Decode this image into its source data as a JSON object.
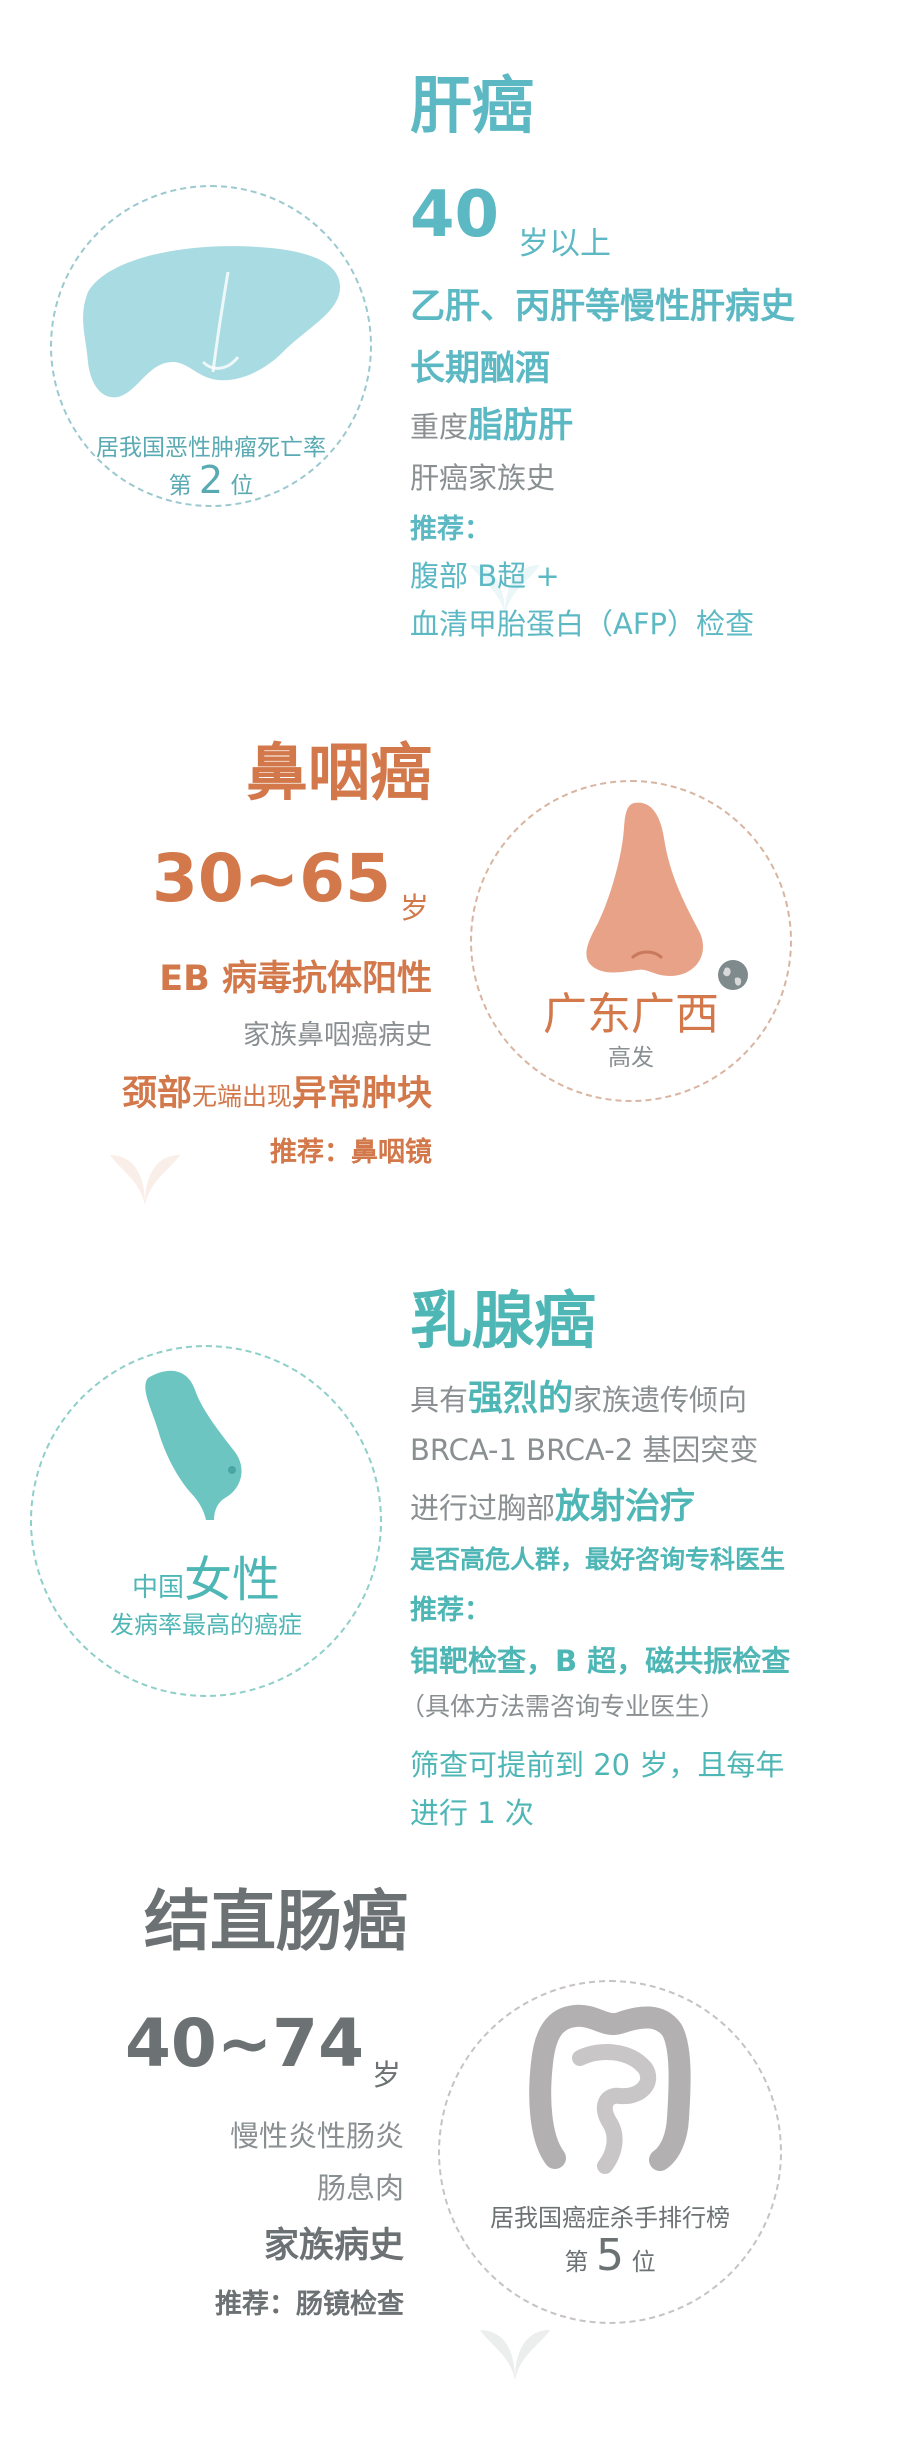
{
  "liver": {
    "title": "肝癌",
    "age_num": "40",
    "age_suffix": "岁以上",
    "risks": [
      "乙肝、丙肝等慢性肝病史",
      "长期酗酒"
    ],
    "fatty_prefix": "重度",
    "fatty_bold": "脂肪肝",
    "family": "肝癌家族史",
    "rec_label": "推荐：",
    "rec_1": "腹部 B超 +",
    "rec_2": "血清甲胎蛋白（AFP）检查",
    "circle_line1": "居我国恶性肿瘤死亡率",
    "circle_rank_pre": "第",
    "circle_rank_num": "2",
    "circle_rank_post": "位",
    "icon": "liver-icon",
    "color": "#5cb9c4"
  },
  "npc": {
    "title": "鼻咽癌",
    "age_num": "30~65",
    "age_suffix": "岁",
    "risk_1": "EB 病毒抗体阳性",
    "risk_2": "家族鼻咽癌病史",
    "neck_a": "颈部",
    "neck_b": "无端出现",
    "neck_c": "异常肿块",
    "rec": "推荐：鼻咽镜",
    "region": "广东广西",
    "region_sub": "高发",
    "icon": "nose-icon",
    "color": "#d2784a"
  },
  "breast": {
    "title": "乳腺癌",
    "l1_a": "具有",
    "l1_b": "强烈的",
    "l1_c": "家族遗传倾向",
    "l2": "BRCA-1 BRCA-2 基因突变",
    "l3_a": "进行过胸部",
    "l3_b": "放射治疗",
    "l4": "是否高危人群，最好咨询专科医生",
    "rec_label": "推荐：",
    "rec_1": "钼靶检查，B 超，磁共振检查",
    "rec_2": "（具体方法需咨询专业医生）",
    "rec_3": "筛查可提前到 20 岁，且每年",
    "rec_4": "进行 1 次",
    "circle_pre": "中国",
    "circle_big": "女性",
    "circle_line2": "发病率最高的癌症",
    "icon": "breast-icon",
    "color": "#4fb6b6"
  },
  "colon": {
    "title": "结直肠癌",
    "age_num": "40~74",
    "age_suffix": "岁",
    "risk_1": "慢性炎性肠炎",
    "risk_2": "肠息肉",
    "risk_3": "家族病史",
    "rec": "推荐：肠镜检查",
    "circle_line1": "居我国癌症杀手排行榜",
    "circle_rank_pre": "第",
    "circle_rank_num": "5",
    "circle_rank_post": "位",
    "icon": "intestine-icon",
    "color": "#6c7173"
  },
  "watermark_icon": "brand-leaf-icon"
}
